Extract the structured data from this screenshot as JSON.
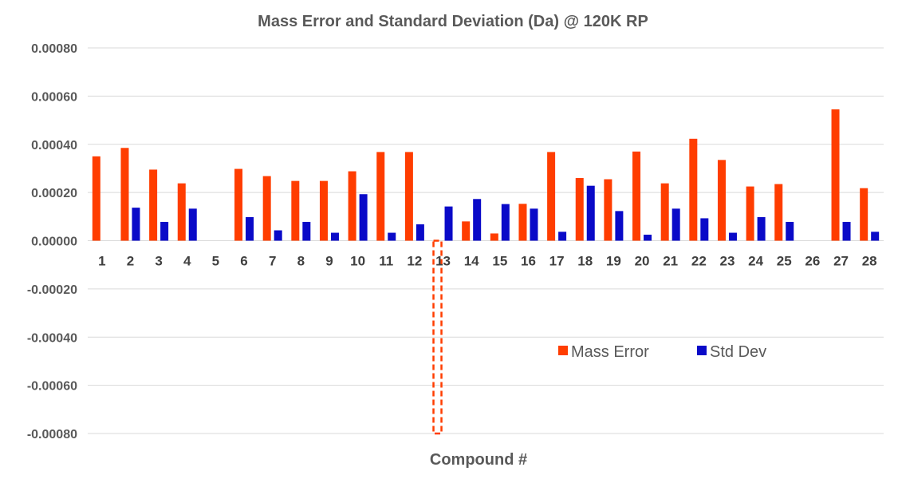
{
  "chart_data": {
    "type": "bar",
    "title": "Mass Error and Standard Deviation (Da) @ 120K RP",
    "xlabel": "Compound #",
    "ylabel": "",
    "ylim": [
      -0.0008,
      0.0008
    ],
    "yticks": [
      0.0008,
      0.0006,
      0.0004,
      0.0002,
      0.0,
      -0.0002,
      -0.0004,
      -0.0006,
      -0.0008
    ],
    "ytick_labels": [
      "0.00080",
      "0.00060",
      "0.00040",
      "0.00020",
      "0.00000",
      "-0.00020",
      "-0.00040",
      "-0.00060",
      "-0.00080"
    ],
    "grid": true,
    "legend_position": "lower-right",
    "categories": [
      "1",
      "2",
      "3",
      "4",
      "5",
      "6",
      "7",
      "8",
      "9",
      "10",
      "11",
      "12",
      "13",
      "14",
      "15",
      "16",
      "17",
      "18",
      "19",
      "20",
      "21",
      "22",
      "23",
      "24",
      "25",
      "26",
      "27",
      "28"
    ],
    "series": [
      {
        "name": "Mass Error",
        "color": "#FF3D00",
        "values": [
          0.00035,
          0.000385,
          0.000295,
          0.000238,
          0,
          0.000298,
          0.000268,
          0.000248,
          0.000248,
          0.000288,
          0.000368,
          0.000368,
          -0.0008,
          8e-05,
          3e-05,
          0.000153,
          0.000368,
          0.00026,
          0.000255,
          0.00037,
          0.000238,
          0.000423,
          0.000335,
          0.000225,
          0.000235,
          0,
          0.000545,
          0.000218
        ]
      },
      {
        "name": "Std Dev",
        "color": "#0A0AC8",
        "values": [
          0,
          0.000137,
          7.8e-05,
          0.000133,
          0,
          9.8e-05,
          4.3e-05,
          7.8e-05,
          3.3e-05,
          0.000193,
          3.3e-05,
          6.8e-05,
          0.000142,
          0.000173,
          0.000152,
          0.000133,
          3.7e-05,
          0.000228,
          0.000123,
          2.5e-05,
          0.000133,
          9.3e-05,
          3.3e-05,
          9.8e-05,
          7.8e-05,
          0,
          7.8e-05,
          3.7e-05
        ]
      }
    ],
    "dashed_outline_categories": [
      "13"
    ]
  }
}
